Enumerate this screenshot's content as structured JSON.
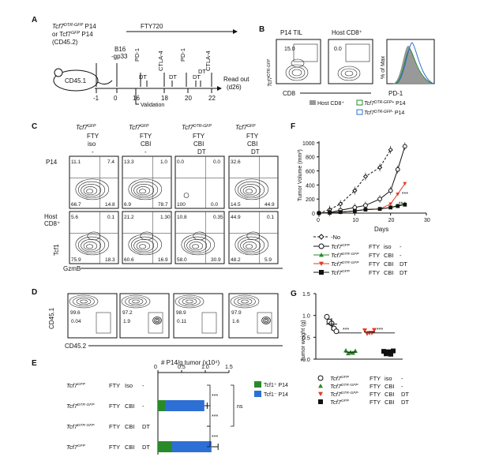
{
  "panels": {
    "a": {
      "label": "A",
      "donor_line1": "Tcf7",
      "donor_line1_sup": "DTR-GFP",
      "donor_line1_end": " P14",
      "donor_line2": "or Tcf7",
      "donor_line2_sup": "GFP",
      "donor_line2_end": " P14",
      "donor_line3": "(CD45.2)",
      "host": "CD45.1",
      "fty": "FTY720",
      "tumor": "B16",
      "tumor2": "-gp33",
      "treatments": [
        "PD-1",
        "CTLA-4",
        "PD-1",
        "CTLA-4"
      ],
      "dt_labels": [
        "DT",
        "DT",
        "DT",
        "DT"
      ],
      "days": [
        "-1",
        "0",
        "16",
        "18",
        "20",
        "22"
      ],
      "validation": "Validation",
      "readout1": "Read out",
      "readout2": "(d26)"
    },
    "b": {
      "label": "B",
      "p14_title": "P14 TIL",
      "host_title": "Host CD8⁺",
      "ylab_main": "Tcf7",
      "ylab_sup": "DTR-GFP",
      "xlab": "CD8",
      "xlab2": "PD-1",
      "ylab_hist": "% of Max",
      "p14_value": "15.0",
      "host_value": "0.0",
      "legend": [
        "Host CD8⁺",
        "Tcf7",
        "P14",
        "Tcf7",
        "P14"
      ],
      "legend_sup": [
        "DTR-GFP+",
        "DTR-GFP-"
      ]
    },
    "c": {
      "label": "C",
      "columns": [
        {
          "gene": "Tcf7",
          "sup": "GFP",
          "l1": "FTY",
          "l2": "iso",
          "l3": "-"
        },
        {
          "gene": "Tcf7",
          "sup": "GFP",
          "l1": "FTY",
          "l2": "CBI",
          "l3": "-"
        },
        {
          "gene": "Tcf7",
          "sup": "DTR-GFP",
          "l1": "FTY",
          "l2": "CBI",
          "l3": "DT"
        },
        {
          "gene": "Tcf7",
          "sup": "GFP",
          "l1": "FTY",
          "l2": "CBI",
          "l3": "DT"
        }
      ],
      "row_p14": "P14",
      "row_host1": "Host",
      "row_host2": "CD8⁺",
      "ylab": "Tcf1",
      "xlab": "GzmB",
      "p14_quads": [
        [
          "11.1",
          "7.4",
          "66.7",
          "14.8"
        ],
        [
          "13.3",
          "1.0",
          "6.9",
          "78.7"
        ],
        [
          "0.0",
          "0.0",
          "100",
          "0.0"
        ],
        [
          "32.6",
          "",
          "14.5",
          "44.9"
        ]
      ],
      "host_quads": [
        [
          "5.6",
          "0.1",
          "75.9",
          "18.3"
        ],
        [
          "21.2",
          "1.30",
          "60.6",
          "16.9"
        ],
        [
          "10.8",
          "0.35",
          "58.0",
          "30.9"
        ],
        [
          "44.9",
          "0.1",
          "48.2",
          "5.9"
        ]
      ]
    },
    "d": {
      "label": "D",
      "ylab": "CD45.1",
      "xlab": "CD45.2",
      "plots": [
        {
          "host": "99.6",
          "donor": "0.04"
        },
        {
          "host": "97.2",
          "donor": "1.9"
        },
        {
          "host": "98.9",
          "donor": "0.11"
        },
        {
          "host": "97.9",
          "donor": "1.6"
        }
      ]
    },
    "e": {
      "label": "E",
      "title": "# P14/g tumor (x10⁴)",
      "ticks": [
        "0",
        "0.5",
        "1.0",
        "1.5"
      ],
      "legend": [
        "Tcf1⁺ P14",
        "Tcf1⁻ P14"
      ],
      "stars": [
        "***",
        "***",
        "***"
      ],
      "ns": "ns"
    },
    "f": {
      "label": "F",
      "ylab": "Tumor Volume (mm³)",
      "xlab": "Days",
      "ticks_y": [
        "0",
        "200",
        "400",
        "600",
        "800",
        "1000"
      ],
      "ticks_x": [
        "0",
        "10",
        "20",
        "30"
      ],
      "sig": [
        "***",
        "**"
      ],
      "legend_no": "-No"
    },
    "g": {
      "label": "G",
      "ylab": "Tumor weight (g)",
      "ticks_y": [
        "0.0",
        "0.5",
        "1.0",
        "1.5"
      ],
      "stars": [
        "***",
        "***"
      ]
    }
  },
  "groups": [
    {
      "gene": "Tcf7",
      "sup": "GFP",
      "c1": "FTY",
      "c2": "Iso",
      "c3": "-",
      "c2f": "iso",
      "c3f": "-",
      "color": "#111111"
    },
    {
      "gene": "Tcf7",
      "sup": "DTR-GFP",
      "c1": "FTY",
      "c2": "CBI",
      "c3": "-",
      "c2f": "CBI",
      "c3f": "-",
      "color": "#2a8a2a"
    },
    {
      "gene": "Tcf7",
      "sup": "DTR-GFP",
      "c1": "FTY",
      "c2": "CBI",
      "c3": "DT",
      "c2f": "CBI",
      "c3f": "DT",
      "color": "#e03a2a"
    },
    {
      "gene": "Tcf7",
      "sup": "GFP",
      "c1": "FTY",
      "c2": "CBI",
      "c3": "DT",
      "c2f": "CBI",
      "c3f": "DT",
      "color": "#111111"
    }
  ],
  "chart_data": [
    {
      "type": "bar",
      "panel": "E",
      "orientation": "horizontal",
      "stacked": true,
      "title": "# P14/g tumor (x10⁴)",
      "xlim": [
        0,
        1.5
      ],
      "categories": [
        "Tcf7 GFP FTY Iso -",
        "Tcf7 DTR-GFP FTY CBI -",
        "Tcf7 DTR-GFP FTY CBI DT",
        "Tcf7 GFP FTY CBI DT"
      ],
      "series": [
        {
          "name": "Tcf1⁺ P14",
          "values": [
            0.0,
            0.15,
            0.0,
            0.3
          ],
          "color": "#2a8a2a"
        },
        {
          "name": "Tcf1⁻ P14",
          "values": [
            0.0,
            0.83,
            0.0,
            0.83
          ],
          "color": "#2e6fd6"
        }
      ],
      "errors": [
        0,
        0.06,
        0,
        0.14
      ],
      "legend": "top-right"
    },
    {
      "type": "line",
      "panel": "F",
      "xlabel": "Days",
      "ylabel": "Tumor Volume (mm³)",
      "xlim": [
        0,
        30
      ],
      "ylim": [
        0,
        1100
      ],
      "x": [
        0,
        3,
        6,
        10,
        13,
        17,
        20,
        22,
        24
      ],
      "series": [
        {
          "name": "-No",
          "values": [
            0,
            50,
            130,
            320,
            520,
            650,
            900,
            null,
            null
          ],
          "style": "dashed-open-diamond",
          "color": "#111111"
        },
        {
          "name": "Tcf7 GFP FTY iso -",
          "values": [
            0,
            10,
            40,
            80,
            110,
            200,
            320,
            620,
            950
          ],
          "style": "open-circle",
          "color": "#111111"
        },
        {
          "name": "Tcf7 DTR-GFP FTY CBI -",
          "values": [
            0,
            5,
            15,
            30,
            50,
            60,
            80,
            110,
            140
          ],
          "style": "triangle",
          "color": "#2a8a2a"
        },
        {
          "name": "Tcf7 DTR-GFP FTY CBI DT",
          "values": [
            0,
            5,
            15,
            30,
            50,
            60,
            130,
            270,
            420
          ],
          "style": "inverted-triangle",
          "color": "#e03a2a"
        },
        {
          "name": "Tcf7 GFP FTY CBI DT",
          "values": [
            0,
            5,
            15,
            30,
            50,
            60,
            80,
            100,
            120
          ],
          "style": "square",
          "color": "#111111"
        }
      ]
    },
    {
      "type": "scatter",
      "panel": "G",
      "ylabel": "Tumor weight (g)",
      "ylim": [
        0,
        1.5
      ],
      "groups": [
        {
          "name": "Tcf7 GFP FTY iso -",
          "values": [
            0.95,
            0.88,
            0.8,
            0.72,
            0.62
          ],
          "mean": 0.8,
          "marker": "open-circle",
          "color": "#111111"
        },
        {
          "name": "Tcf7 DTR-GFP FTY CBI -",
          "values": [
            0.18,
            0.15,
            0.14,
            0.16,
            0.17
          ],
          "mean": 0.16,
          "marker": "triangle",
          "color": "#2a8a2a"
        },
        {
          "name": "Tcf7 DTR-GFP FTY CBI DT",
          "values": [
            0.64,
            0.6,
            0.58,
            0.62,
            0.65
          ],
          "mean": 0.62,
          "marker": "inverted-triangle",
          "color": "#e03a2a"
        },
        {
          "name": "Tcf7 GFP FTY CBI DT",
          "values": [
            0.16,
            0.14,
            0.15,
            0.13,
            0.17
          ],
          "mean": 0.15,
          "marker": "square",
          "color": "#111111"
        }
      ]
    }
  ]
}
